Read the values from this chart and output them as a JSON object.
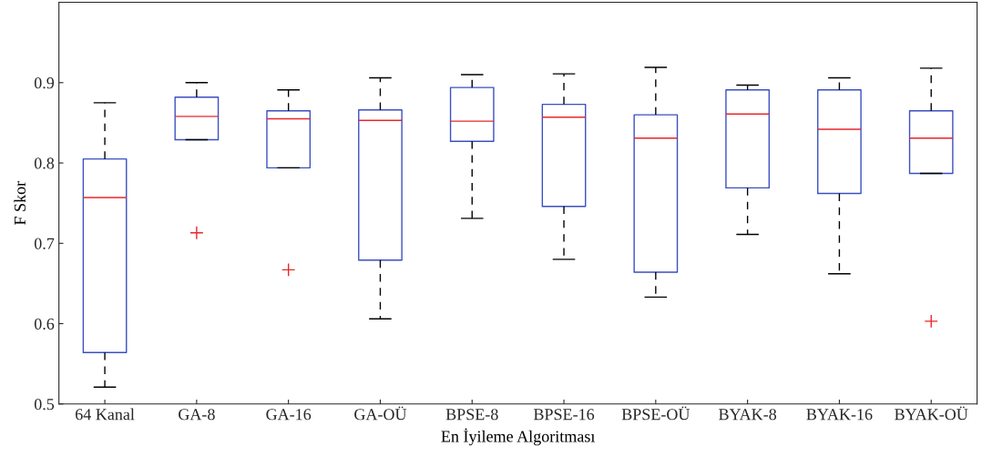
{
  "chart_data": {
    "type": "box",
    "xlabel": "En İyileme Algoritması",
    "ylabel": "F Skor",
    "categories": [
      "64 Kanal",
      "GA-8",
      "GA-16",
      "GA-OÜ",
      "BPSE-8",
      "BPSE-16",
      "BPSE-OÜ",
      "BYAK-8",
      "BYAK-16",
      "BYAK-OÜ"
    ],
    "ylim": [
      0.5,
      1.0
    ],
    "yticks": [
      0.5,
      0.6,
      0.7,
      0.8,
      0.9
    ],
    "grid": false,
    "series": [
      {
        "color": "#3b4fc1",
        "boxes": [
          {
            "low": 0.521,
            "q1": 0.564,
            "median": 0.757,
            "q3": 0.805,
            "high": 0.875
          },
          {
            "low": 0.829,
            "q1": 0.829,
            "median": 0.858,
            "q3": 0.882,
            "high": 0.9,
            "outliers": [
              0.713
            ]
          },
          {
            "low": 0.794,
            "q1": 0.794,
            "median": 0.855,
            "q3": 0.865,
            "high": 0.891,
            "outliers": [
              0.667
            ]
          },
          {
            "low": 0.606,
            "q1": 0.679,
            "median": 0.853,
            "q3": 0.866,
            "high": 0.906
          },
          {
            "low": 0.731,
            "q1": 0.827,
            "median": 0.852,
            "q3": 0.894,
            "high": 0.91
          },
          {
            "low": 0.68,
            "q1": 0.746,
            "median": 0.857,
            "q3": 0.873,
            "high": 0.911
          },
          {
            "low": 0.633,
            "q1": 0.664,
            "median": 0.831,
            "q3": 0.86,
            "high": 0.919
          },
          {
            "low": 0.711,
            "q1": 0.769,
            "median": 0.861,
            "q3": 0.891,
            "high": 0.897
          },
          {
            "low": 0.662,
            "q1": 0.762,
            "median": 0.842,
            "q3": 0.891,
            "high": 0.906
          },
          {
            "low": 0.787,
            "q1": 0.787,
            "median": 0.831,
            "q3": 0.865,
            "high": 0.918,
            "outliers": [
              0.603
            ]
          }
        ]
      }
    ]
  }
}
